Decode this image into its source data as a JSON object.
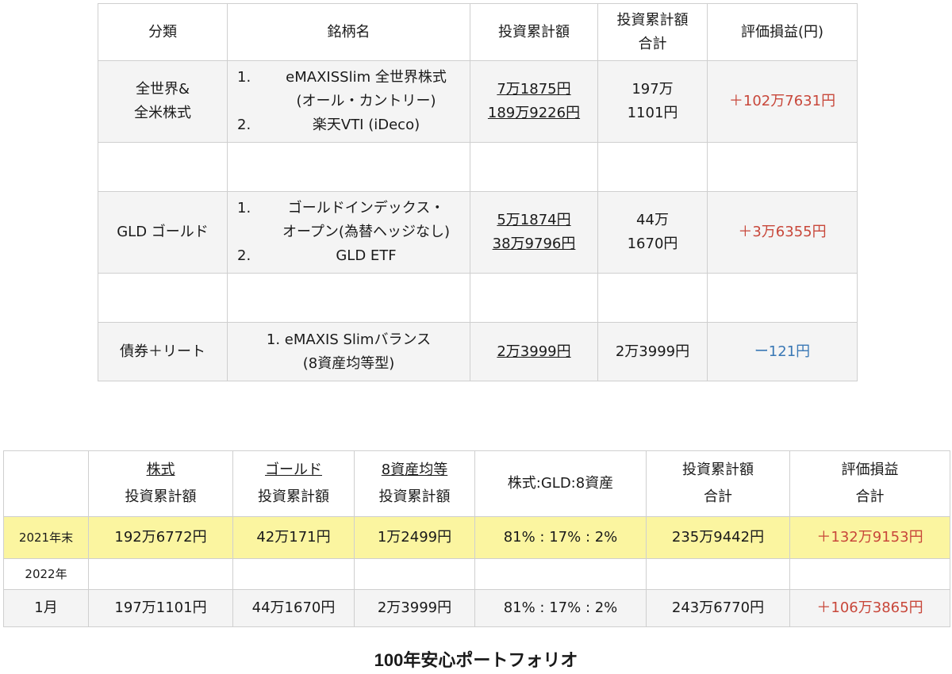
{
  "table1": {
    "headers": [
      "分類",
      "銘柄名",
      "投資累計額",
      "投資累計額\n合計",
      "評価損益(円)"
    ],
    "rows": [
      {
        "category": "全世界&\n全米株式",
        "items": [
          {
            "num": "1.",
            "lines": [
              "eMAXISSlim 全世界株式",
              "(オール・カントリー)"
            ]
          },
          {
            "num": "2.",
            "lines": [
              "楽天VTI (iDeco)"
            ]
          }
        ],
        "amounts": [
          "7万1875円",
          "189万9226円"
        ],
        "total": "197万\n1101円",
        "pl": "＋102万7631円"
      },
      {
        "category": "GLD ゴールド",
        "items": [
          {
            "num": "1.",
            "lines": [
              "ゴールドインデックス・",
              "オープン(為替ヘッジなし)"
            ]
          },
          {
            "num": "2.",
            "lines": [
              "GLD ETF"
            ]
          }
        ],
        "amounts": [
          "5万1874円",
          "38万9796円"
        ],
        "total": "44万\n1670円",
        "pl": "＋3万6355円"
      },
      {
        "category": "債券＋リート",
        "items_text": "1. eMAXIS Slimバランス\n(8資産均等型)",
        "amounts": [
          "2万3999円"
        ],
        "total": "2万3999円",
        "pl": "ー121円"
      }
    ]
  },
  "table2": {
    "headers": [
      {
        "top": "株式",
        "bottom": "投資累計額"
      },
      {
        "top": "ゴールド",
        "bottom": "投資累計額"
      },
      {
        "top": "8資産均等",
        "bottom": "投資累計額"
      },
      {
        "single": "株式:GLD:8資産"
      },
      {
        "top": "投資累計額",
        "bottom": "合計"
      },
      {
        "top": "評価損益",
        "bottom": "合計"
      }
    ],
    "rows": [
      {
        "label": "2021年末",
        "values": [
          "192万6772円",
          "42万171円",
          "1万2499円",
          "81% : 17% : 2%",
          "235万9442円",
          "＋132万9153円"
        ]
      },
      {
        "label": "2022年",
        "values": [
          "",
          "",
          "",
          "",
          "",
          ""
        ]
      },
      {
        "label": "1月",
        "values": [
          "197万1101円",
          "44万1670円",
          "2万3999円",
          "81% : 17% : 2%",
          "243万6770円",
          "＋106万3865円"
        ]
      }
    ]
  },
  "caption": "100年安心ポートフォリオ",
  "colors": {
    "positive": "#c8473a",
    "negative": "#3a78b5",
    "highlight_row": "#fbf5a0",
    "shaded_row": "#f4f4f4",
    "border": "#cfcfcf"
  }
}
